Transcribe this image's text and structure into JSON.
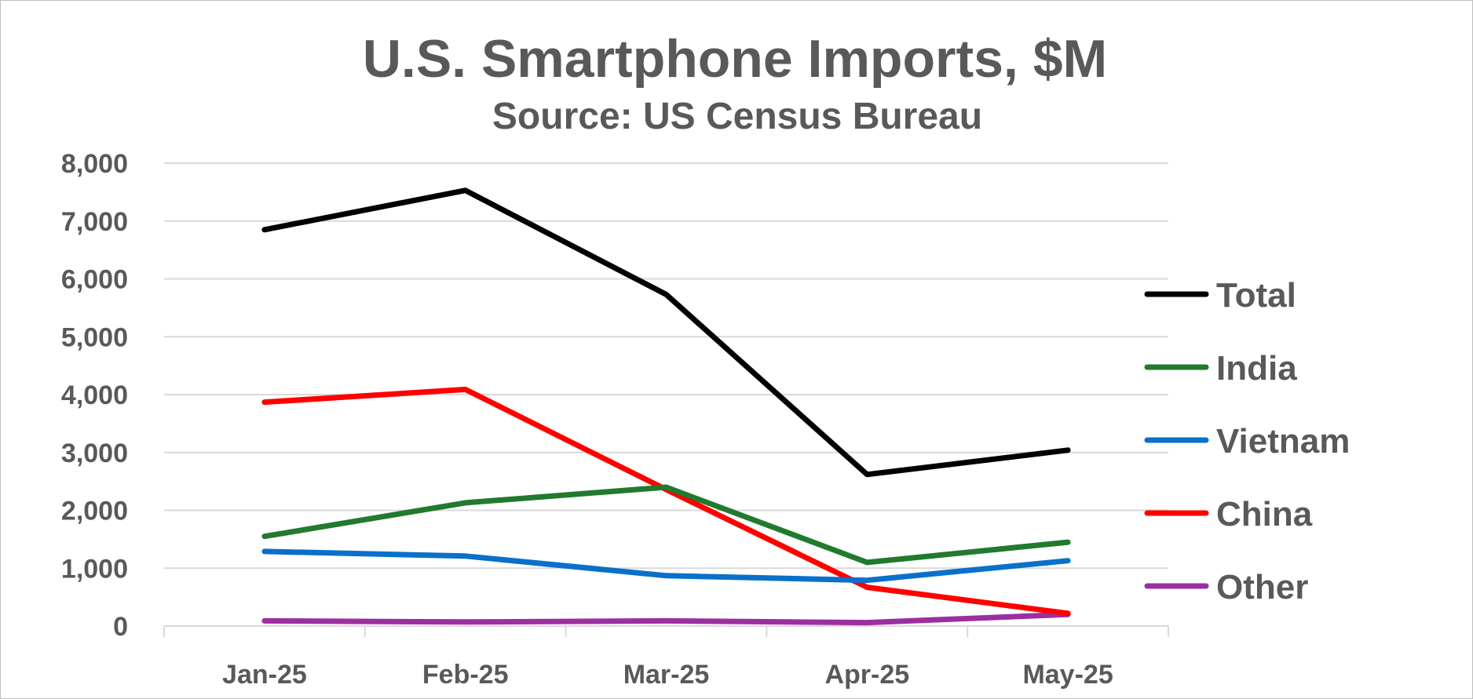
{
  "chart_data": {
    "type": "line",
    "title": "U.S. Smartphone Imports, $M",
    "subtitle": "Source: US Census Bureau",
    "xlabel": "",
    "ylabel": "",
    "categories": [
      "Jan-25",
      "Feb-25",
      "Mar-25",
      "Apr-25",
      "May-25"
    ],
    "y_ticks": [
      "0",
      "1,000",
      "2,000",
      "3,000",
      "4,000",
      "5,000",
      "6,000",
      "7,000",
      "8,000"
    ],
    "ylim": [
      0,
      8000
    ],
    "grid": true,
    "legend_position": "right",
    "series": [
      {
        "name": "Total",
        "color": "#000000",
        "values": [
          6850,
          7530,
          5730,
          2620,
          3040
        ]
      },
      {
        "name": "India",
        "color": "#217a2e",
        "values": [
          1550,
          2130,
          2400,
          1100,
          1450
        ]
      },
      {
        "name": "Vietnam",
        "color": "#0a70c9",
        "values": [
          1290,
          1210,
          870,
          790,
          1130
        ]
      },
      {
        "name": "China",
        "color": "#ff0000",
        "values": [
          3870,
          4090,
          2360,
          670,
          220
        ]
      },
      {
        "name": "Other",
        "color": "#9c2fa0",
        "values": [
          90,
          70,
          90,
          60,
          200
        ]
      }
    ]
  }
}
